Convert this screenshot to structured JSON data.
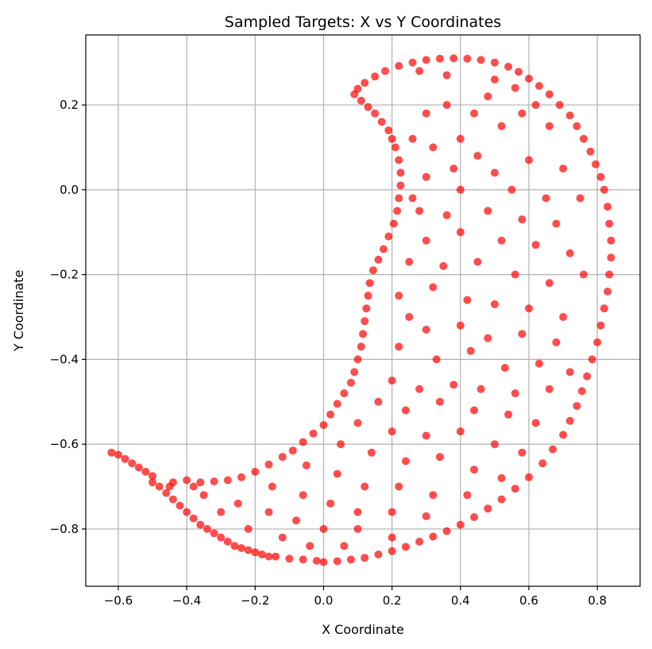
{
  "chart_data": {
    "type": "scatter",
    "title": "Sampled Targets: X vs Y Coordinates",
    "xlabel": "X Coordinate",
    "ylabel": "Y Coordinate",
    "xlim": [
      -0.695,
      0.925
    ],
    "ylim": [
      -0.935,
      0.365
    ],
    "grid": true,
    "marker_color": "#ff0000",
    "marker_alpha": 0.7,
    "xticks": [
      -0.6,
      -0.4,
      -0.2,
      0.0,
      0.2,
      0.4,
      0.6,
      0.8
    ],
    "xtick_labels": [
      "−0.6",
      "−0.4",
      "−0.2",
      "0.0",
      "0.2",
      "0.4",
      "0.6",
      "0.8"
    ],
    "yticks": [
      0.2,
      0.0,
      -0.2,
      -0.4,
      -0.6,
      -0.8
    ],
    "ytick_labels": [
      "0.2",
      "0.0",
      "−0.2",
      "−0.4",
      "−0.6",
      "−0.8"
    ],
    "series": [
      {
        "points": [
          [
            -0.62,
            -0.62
          ],
          [
            -0.6,
            -0.625
          ],
          [
            -0.58,
            -0.635
          ],
          [
            -0.56,
            -0.645
          ],
          [
            -0.54,
            -0.655
          ],
          [
            -0.52,
            -0.665
          ],
          [
            -0.5,
            -0.675
          ],
          [
            -0.5,
            -0.69
          ],
          [
            -0.48,
            -0.7
          ],
          [
            -0.46,
            -0.715
          ],
          [
            -0.44,
            -0.73
          ],
          [
            -0.42,
            -0.745
          ],
          [
            -0.4,
            -0.76
          ],
          [
            -0.38,
            -0.775
          ],
          [
            -0.36,
            -0.79
          ],
          [
            -0.34,
            -0.8
          ],
          [
            -0.32,
            -0.81
          ],
          [
            -0.3,
            -0.82
          ],
          [
            -0.28,
            -0.83
          ],
          [
            -0.26,
            -0.84
          ],
          [
            -0.24,
            -0.845
          ],
          [
            -0.22,
            -0.85
          ],
          [
            -0.2,
            -0.855
          ],
          [
            -0.18,
            -0.86
          ],
          [
            -0.16,
            -0.865
          ],
          [
            -0.14,
            -0.865
          ],
          [
            -0.1,
            -0.87
          ],
          [
            -0.06,
            -0.872
          ],
          [
            -0.02,
            -0.875
          ],
          [
            0.0,
            -0.878
          ],
          [
            0.04,
            -0.876
          ],
          [
            0.08,
            -0.872
          ],
          [
            0.12,
            -0.868
          ],
          [
            0.16,
            -0.86
          ],
          [
            0.2,
            -0.852
          ],
          [
            0.24,
            -0.842
          ],
          [
            0.28,
            -0.83
          ],
          [
            0.32,
            -0.818
          ],
          [
            0.36,
            -0.805
          ],
          [
            0.4,
            -0.79
          ],
          [
            0.44,
            -0.772
          ],
          [
            0.48,
            -0.752
          ],
          [
            0.52,
            -0.73
          ],
          [
            0.56,
            -0.705
          ],
          [
            0.6,
            -0.678
          ],
          [
            0.64,
            -0.645
          ],
          [
            0.67,
            -0.612
          ],
          [
            0.7,
            -0.578
          ],
          [
            0.72,
            -0.545
          ],
          [
            0.74,
            -0.51
          ],
          [
            0.755,
            -0.475
          ],
          [
            0.77,
            -0.44
          ],
          [
            0.785,
            -0.4
          ],
          [
            0.8,
            -0.36
          ],
          [
            0.81,
            -0.32
          ],
          [
            0.82,
            -0.28
          ],
          [
            0.83,
            -0.24
          ],
          [
            0.835,
            -0.2
          ],
          [
            0.84,
            -0.16
          ],
          [
            0.84,
            -0.12
          ],
          [
            0.835,
            -0.08
          ],
          [
            0.83,
            -0.04
          ],
          [
            0.82,
            0.0
          ],
          [
            0.81,
            0.03
          ],
          [
            0.795,
            0.06
          ],
          [
            0.78,
            0.09
          ],
          [
            0.76,
            0.12
          ],
          [
            0.74,
            0.15
          ],
          [
            0.72,
            0.175
          ],
          [
            0.69,
            0.2
          ],
          [
            0.66,
            0.225
          ],
          [
            0.63,
            0.245
          ],
          [
            0.6,
            0.262
          ],
          [
            0.57,
            0.278
          ],
          [
            0.54,
            0.29
          ],
          [
            0.5,
            0.3
          ],
          [
            0.46,
            0.306
          ],
          [
            0.42,
            0.309
          ],
          [
            0.38,
            0.31
          ],
          [
            0.34,
            0.309
          ],
          [
            0.3,
            0.306
          ],
          [
            0.26,
            0.3
          ],
          [
            0.22,
            0.292
          ],
          [
            0.18,
            0.28
          ],
          [
            0.15,
            0.267
          ],
          [
            0.12,
            0.252
          ],
          [
            0.1,
            0.238
          ],
          [
            0.09,
            0.225
          ],
          [
            0.11,
            0.21
          ],
          [
            0.13,
            0.195
          ],
          [
            0.15,
            0.18
          ],
          [
            0.17,
            0.16
          ],
          [
            0.19,
            0.14
          ],
          [
            0.2,
            0.12
          ],
          [
            0.21,
            0.1
          ],
          [
            0.22,
            0.07
          ],
          [
            0.225,
            0.04
          ],
          [
            0.225,
            0.01
          ],
          [
            0.22,
            -0.02
          ],
          [
            0.215,
            -0.05
          ],
          [
            0.205,
            -0.08
          ],
          [
            0.19,
            -0.11
          ],
          [
            0.175,
            -0.14
          ],
          [
            0.16,
            -0.165
          ],
          [
            0.145,
            -0.19
          ],
          [
            0.135,
            -0.22
          ],
          [
            0.13,
            -0.25
          ],
          [
            0.125,
            -0.28
          ],
          [
            0.12,
            -0.31
          ],
          [
            0.115,
            -0.34
          ],
          [
            0.11,
            -0.37
          ],
          [
            0.1,
            -0.4
          ],
          [
            0.09,
            -0.43
          ],
          [
            0.08,
            -0.455
          ],
          [
            0.06,
            -0.48
          ],
          [
            0.04,
            -0.505
          ],
          [
            0.02,
            -0.53
          ],
          [
            0.0,
            -0.555
          ],
          [
            -0.03,
            -0.575
          ],
          [
            -0.06,
            -0.595
          ],
          [
            -0.09,
            -0.615
          ],
          [
            -0.12,
            -0.63
          ],
          [
            -0.16,
            -0.648
          ],
          [
            -0.2,
            -0.665
          ],
          [
            -0.24,
            -0.678
          ],
          [
            -0.28,
            -0.685
          ],
          [
            -0.32,
            -0.688
          ],
          [
            -0.36,
            -0.69
          ],
          [
            -0.4,
            -0.685
          ],
          [
            -0.44,
            -0.69
          ],
          [
            0.28,
            0.28
          ],
          [
            0.36,
            0.27
          ],
          [
            0.5,
            0.26
          ],
          [
            0.56,
            0.24
          ],
          [
            0.62,
            0.2
          ],
          [
            0.52,
            0.15
          ],
          [
            0.4,
            0.12
          ],
          [
            0.32,
            0.1
          ],
          [
            0.45,
            0.08
          ],
          [
            0.6,
            0.07
          ],
          [
            0.7,
            0.05
          ],
          [
            0.3,
            0.03
          ],
          [
            0.4,
            0.0
          ],
          [
            0.55,
            0.0
          ],
          [
            0.65,
            -0.02
          ],
          [
            0.75,
            -0.02
          ],
          [
            0.28,
            -0.05
          ],
          [
            0.36,
            -0.06
          ],
          [
            0.48,
            -0.05
          ],
          [
            0.58,
            -0.07
          ],
          [
            0.68,
            -0.08
          ],
          [
            0.3,
            -0.12
          ],
          [
            0.4,
            -0.1
          ],
          [
            0.52,
            -0.12
          ],
          [
            0.62,
            -0.13
          ],
          [
            0.72,
            -0.15
          ],
          [
            0.25,
            -0.17
          ],
          [
            0.35,
            -0.18
          ],
          [
            0.45,
            -0.17
          ],
          [
            0.56,
            -0.2
          ],
          [
            0.66,
            -0.22
          ],
          [
            0.76,
            -0.2
          ],
          [
            0.22,
            -0.25
          ],
          [
            0.32,
            -0.23
          ],
          [
            0.42,
            -0.26
          ],
          [
            0.5,
            -0.27
          ],
          [
            0.6,
            -0.28
          ],
          [
            0.7,
            -0.3
          ],
          [
            0.25,
            -0.3
          ],
          [
            0.3,
            -0.33
          ],
          [
            0.4,
            -0.32
          ],
          [
            0.48,
            -0.35
          ],
          [
            0.58,
            -0.34
          ],
          [
            0.68,
            -0.36
          ],
          [
            0.22,
            -0.37
          ],
          [
            0.33,
            -0.4
          ],
          [
            0.43,
            -0.38
          ],
          [
            0.53,
            -0.42
          ],
          [
            0.63,
            -0.41
          ],
          [
            0.72,
            -0.43
          ],
          [
            0.2,
            -0.45
          ],
          [
            0.28,
            -0.47
          ],
          [
            0.38,
            -0.46
          ],
          [
            0.46,
            -0.47
          ],
          [
            0.56,
            -0.48
          ],
          [
            0.66,
            -0.47
          ],
          [
            0.16,
            -0.5
          ],
          [
            0.24,
            -0.52
          ],
          [
            0.34,
            -0.5
          ],
          [
            0.44,
            -0.52
          ],
          [
            0.54,
            -0.53
          ],
          [
            0.62,
            -0.55
          ],
          [
            0.1,
            -0.55
          ],
          [
            0.2,
            -0.57
          ],
          [
            0.3,
            -0.58
          ],
          [
            0.4,
            -0.57
          ],
          [
            0.5,
            -0.6
          ],
          [
            0.58,
            -0.62
          ],
          [
            0.05,
            -0.6
          ],
          [
            0.14,
            -0.62
          ],
          [
            0.24,
            -0.64
          ],
          [
            0.34,
            -0.63
          ],
          [
            0.44,
            -0.66
          ],
          [
            0.52,
            -0.68
          ],
          [
            -0.05,
            -0.65
          ],
          [
            0.04,
            -0.67
          ],
          [
            0.12,
            -0.7
          ],
          [
            0.22,
            -0.7
          ],
          [
            0.32,
            -0.72
          ],
          [
            0.42,
            -0.72
          ],
          [
            -0.15,
            -0.7
          ],
          [
            -0.06,
            -0.72
          ],
          [
            0.02,
            -0.74
          ],
          [
            0.1,
            -0.76
          ],
          [
            0.2,
            -0.76
          ],
          [
            0.3,
            -0.77
          ],
          [
            -0.25,
            -0.74
          ],
          [
            -0.16,
            -0.76
          ],
          [
            -0.08,
            -0.78
          ],
          [
            0.0,
            -0.8
          ],
          [
            0.1,
            -0.8
          ],
          [
            0.2,
            -0.82
          ],
          [
            -0.35,
            -0.72
          ],
          [
            -0.3,
            -0.76
          ],
          [
            -0.22,
            -0.8
          ],
          [
            -0.12,
            -0.82
          ],
          [
            -0.04,
            -0.84
          ],
          [
            0.06,
            -0.84
          ],
          [
            -0.45,
            -0.7
          ],
          [
            -0.38,
            -0.7
          ],
          [
            0.36,
            0.2
          ],
          [
            0.44,
            0.18
          ],
          [
            0.3,
            0.18
          ],
          [
            0.48,
            0.22
          ],
          [
            0.58,
            0.18
          ],
          [
            0.66,
            0.15
          ],
          [
            0.26,
            0.12
          ],
          [
            0.38,
            0.05
          ],
          [
            0.5,
            0.04
          ],
          [
            0.26,
            -0.02
          ]
        ]
      }
    ]
  }
}
